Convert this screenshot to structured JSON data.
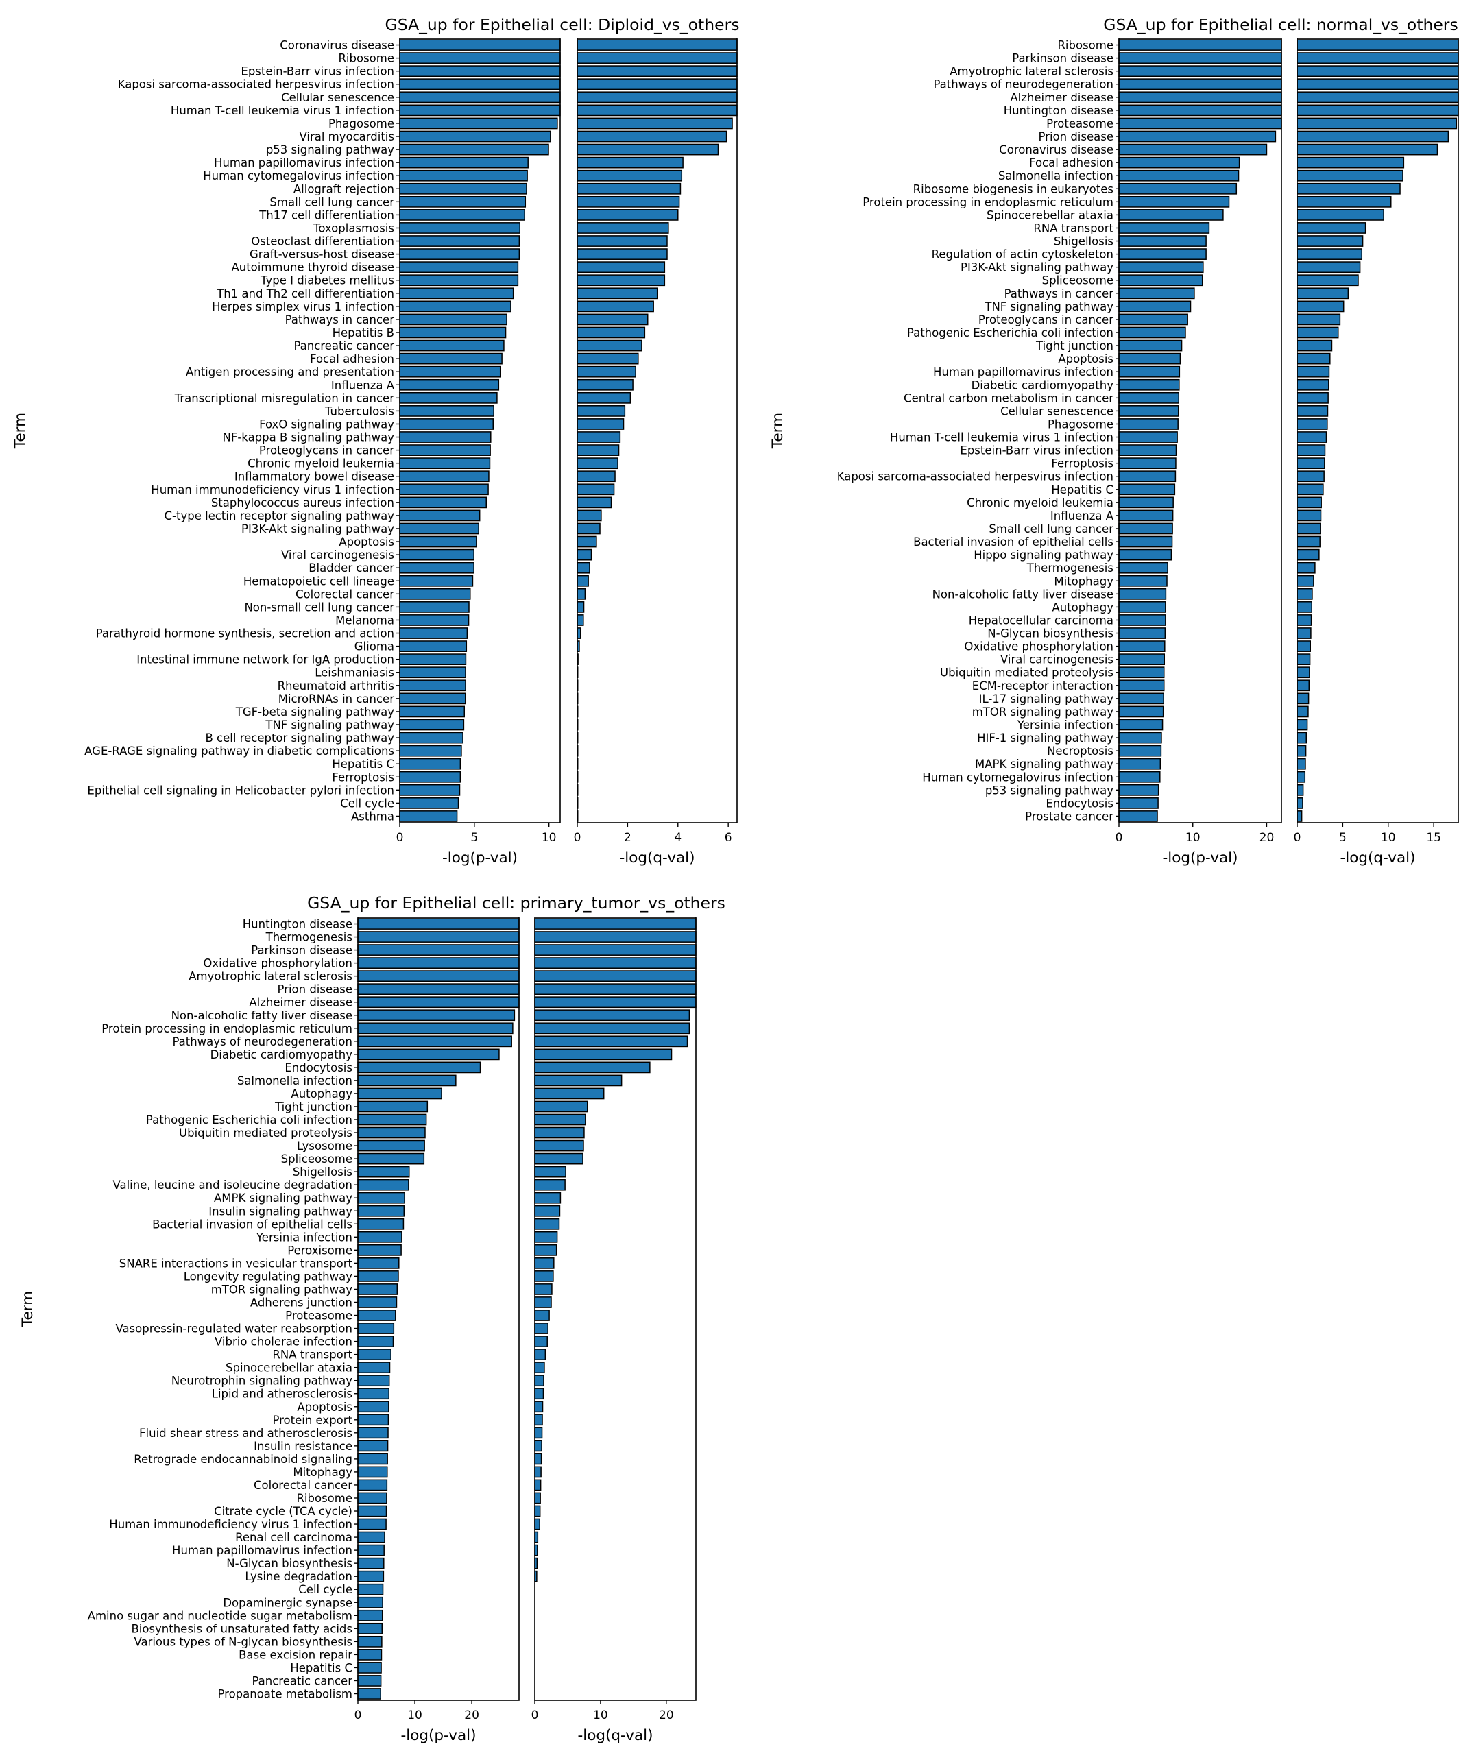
{
  "chart_data": [
    {
      "type": "bar",
      "orientation": "horizontal",
      "title": "GSA_up for Epithelial cell: Diploid_vs_others",
      "ylabel": "Term",
      "terms": [
        "Coronavirus disease",
        "Ribosome",
        "Epstein-Barr virus infection",
        "Kaposi sarcoma-associated herpesvirus infection",
        "Cellular senescence",
        "Human T-cell leukemia virus 1 infection",
        "Phagosome",
        "Viral myocarditis",
        "p53 signaling pathway",
        "Human papillomavirus infection",
        "Human cytomegalovirus infection",
        "Allograft rejection",
        "Small cell lung cancer",
        "Th17 cell differentiation",
        "Toxoplasmosis",
        "Osteoclast differentiation",
        "Graft-versus-host disease",
        "Autoimmune thyroid disease",
        "Type I diabetes mellitus",
        "Th1 and Th2 cell differentiation",
        "Herpes simplex virus 1 infection",
        "Pathways in cancer",
        "Hepatitis B",
        "Pancreatic cancer",
        "Focal adhesion",
        "Antigen processing and presentation",
        "Influenza A",
        "Transcriptional misregulation in cancer",
        "Tuberculosis",
        "FoxO signaling pathway",
        "NF-kappa B signaling pathway",
        "Proteoglycans in cancer",
        "Chronic myeloid leukemia",
        "Inflammatory bowel disease",
        "Human immunodeficiency virus 1 infection",
        "Staphylococcus aureus infection",
        "C-type lectin receptor signaling pathway",
        "PI3K-Akt signaling pathway",
        "Apoptosis",
        "Viral carcinogenesis",
        "Bladder cancer",
        "Hematopoietic cell lineage",
        "Colorectal cancer",
        "Non-small cell lung cancer",
        "Melanoma",
        "Parathyroid hormone synthesis, secretion and action",
        "Glioma",
        "Intestinal immune network for IgA production",
        "Leishmaniasis",
        "Rheumatoid arthritis",
        "MicroRNAs in cancer",
        "TGF-beta signaling pathway",
        "TNF signaling pathway",
        "B cell receptor signaling pathway",
        "AGE-RAGE signaling pathway in diabetic complications",
        "Hepatitis C",
        "Ferroptosis",
        "Epithelial cell signaling in Helicobacter pylori infection",
        "Cell cycle",
        "Asthma"
      ],
      "panels": [
        {
          "xlabel": "-log(p-val)",
          "xlim": [
            0,
            10.75
          ],
          "xticks": [
            0,
            5,
            10
          ],
          "values": [
            10.75,
            10.75,
            10.75,
            10.75,
            10.75,
            10.75,
            10.56,
            10.1,
            9.97,
            8.6,
            8.55,
            8.5,
            8.42,
            8.37,
            8.05,
            8.01,
            8.01,
            7.92,
            7.92,
            7.61,
            7.44,
            7.17,
            7.1,
            6.98,
            6.85,
            6.74,
            6.63,
            6.52,
            6.3,
            6.26,
            6.1,
            6.07,
            6.04,
            5.97,
            5.93,
            5.8,
            5.36,
            5.29,
            5.14,
            4.97,
            4.97,
            4.89,
            4.72,
            4.64,
            4.62,
            4.52,
            4.47,
            4.43,
            4.41,
            4.41,
            4.4,
            4.33,
            4.29,
            4.23,
            4.13,
            4.06,
            4.06,
            4.02,
            3.93,
            3.84
          ]
        },
        {
          "xlabel": "-log(q-val)",
          "xlim": [
            0,
            6.35
          ],
          "xticks": [
            0,
            2,
            4,
            6
          ],
          "values": [
            6.35,
            6.35,
            6.35,
            6.35,
            6.35,
            6.35,
            6.16,
            5.93,
            5.6,
            4.2,
            4.15,
            4.1,
            4.05,
            4.0,
            3.62,
            3.57,
            3.57,
            3.47,
            3.47,
            3.18,
            3.03,
            2.8,
            2.68,
            2.56,
            2.42,
            2.32,
            2.21,
            2.11,
            1.89,
            1.84,
            1.7,
            1.65,
            1.61,
            1.5,
            1.46,
            1.35,
            0.95,
            0.9,
            0.76,
            0.56,
            0.49,
            0.44,
            0.31,
            0.26,
            0.24,
            0.13,
            0.08,
            0.03,
            0.02,
            0.02,
            0.02,
            0.02,
            0.02,
            0.02,
            0.02,
            0.02,
            0.02,
            0.02,
            0.02,
            0.02
          ]
        }
      ]
    },
    {
      "type": "bar",
      "orientation": "horizontal",
      "title": "GSA_up for Epithelial cell: normal_vs_others",
      "ylabel": "Term",
      "terms": [
        "Ribosome",
        "Parkinson disease",
        "Amyotrophic lateral sclerosis",
        "Pathways of neurodegeneration",
        "Alzheimer disease",
        "Huntington disease",
        "Proteasome",
        "Prion disease",
        "Coronavirus disease",
        "Focal adhesion",
        "Salmonella infection",
        "Ribosome biogenesis in eukaryotes",
        "Protein processing in endoplasmic reticulum",
        "Spinocerebellar ataxia",
        "RNA transport",
        "Shigellosis",
        "Regulation of actin cytoskeleton",
        "PI3K-Akt signaling pathway",
        "Spliceosome",
        "Pathways in cancer",
        "TNF signaling pathway",
        "Proteoglycans in cancer",
        "Pathogenic Escherichia coli infection",
        "Tight junction",
        "Apoptosis",
        "Human papillomavirus infection",
        "Diabetic cardiomyopathy",
        "Central carbon metabolism in cancer",
        "Cellular senescence",
        "Phagosome",
        "Human T-cell leukemia virus 1 infection",
        "Epstein-Barr virus infection",
        "Ferroptosis",
        "Kaposi sarcoma-associated herpesvirus infection",
        "Hepatitis C",
        "Chronic myeloid leukemia",
        "Influenza A",
        "Small cell lung cancer",
        "Bacterial invasion of epithelial cells",
        "Hippo signaling pathway",
        "Thermogenesis",
        "Mitophagy",
        "Non-alcoholic fatty liver disease",
        "Autophagy",
        "Hepatocellular carcinoma",
        "N-Glycan biosynthesis",
        "Oxidative phosphorylation",
        "Viral carcinogenesis",
        "Ubiquitin mediated proteolysis",
        "ECM-receptor interaction",
        "IL-17 signaling pathway",
        "mTOR signaling pathway",
        "Yersinia infection",
        "HIF-1 signaling pathway",
        "Necroptosis",
        "MAPK signaling pathway",
        "Human cytomegalovirus infection",
        "p53 signaling pathway",
        "Endocytosis",
        "Prostate cancer"
      ],
      "panels": [
        {
          "xlabel": "-log(p-val)",
          "xlim": [
            0,
            22
          ],
          "xticks": [
            0,
            10,
            20
          ],
          "values": [
            22,
            22,
            22,
            22,
            22,
            22,
            22,
            21.2,
            20.0,
            16.3,
            16.2,
            15.9,
            14.9,
            14.1,
            12.2,
            11.8,
            11.8,
            11.4,
            11.3,
            10.2,
            9.7,
            9.3,
            9.0,
            8.5,
            8.3,
            8.2,
            8.15,
            8.1,
            8.05,
            8.0,
            7.9,
            7.75,
            7.7,
            7.65,
            7.55,
            7.35,
            7.3,
            7.25,
            7.2,
            7.1,
            6.6,
            6.5,
            6.35,
            6.3,
            6.3,
            6.25,
            6.2,
            6.15,
            6.1,
            6.1,
            6.05,
            6.0,
            5.9,
            5.75,
            5.7,
            5.6,
            5.55,
            5.35,
            5.3,
            5.2
          ]
        },
        {
          "xlabel": "-log(q-val)",
          "xlim": [
            0,
            17.7
          ],
          "xticks": [
            0,
            5,
            10,
            15
          ],
          "values": [
            17.7,
            17.7,
            17.7,
            17.7,
            17.7,
            17.7,
            17.5,
            16.6,
            15.4,
            11.7,
            11.6,
            11.3,
            10.3,
            9.5,
            7.5,
            7.2,
            7.1,
            6.9,
            6.7,
            5.6,
            5.1,
            4.7,
            4.5,
            3.8,
            3.6,
            3.5,
            3.45,
            3.4,
            3.35,
            3.3,
            3.2,
            3.05,
            3.0,
            2.95,
            2.85,
            2.65,
            2.6,
            2.55,
            2.5,
            2.4,
            1.95,
            1.8,
            1.65,
            1.6,
            1.55,
            1.5,
            1.45,
            1.4,
            1.35,
            1.3,
            1.25,
            1.2,
            1.1,
            1.0,
            0.95,
            0.9,
            0.85,
            0.65,
            0.6,
            0.5
          ]
        }
      ]
    },
    {
      "type": "bar",
      "orientation": "horizontal",
      "title": "GSA_up for Epithelial cell: primary_tumor_vs_others",
      "ylabel": "Term",
      "terms": [
        "Huntington disease",
        "Thermogenesis",
        "Parkinson disease",
        "Oxidative phosphorylation",
        "Amyotrophic lateral sclerosis",
        "Prion disease",
        "Alzheimer disease",
        "Non-alcoholic fatty liver disease",
        "Protein processing in endoplasmic reticulum",
        "Pathways of neurodegeneration",
        "Diabetic cardiomyopathy",
        "Endocytosis",
        "Salmonella infection",
        "Autophagy",
        "Tight junction",
        "Pathogenic Escherichia coli infection",
        "Ubiquitin mediated proteolysis",
        "Lysosome",
        "Spliceosome",
        "Shigellosis",
        "Valine, leucine and isoleucine degradation",
        "AMPK signaling pathway",
        "Insulin signaling pathway",
        "Bacterial invasion of epithelial cells",
        "Yersinia infection",
        "Peroxisome",
        "SNARE interactions in vesicular transport",
        "Longevity regulating pathway",
        "mTOR signaling pathway",
        "Adherens junction",
        "Proteasome",
        "Vasopressin-regulated water reabsorption",
        "Vibrio cholerae infection",
        "RNA transport",
        "Spinocerebellar ataxia",
        "Neurotrophin signaling pathway",
        "Lipid and atherosclerosis",
        "Apoptosis",
        "Protein export",
        "Fluid shear stress and atherosclerosis",
        "Insulin resistance",
        "Retrograde endocannabinoid signaling",
        "Mitophagy",
        "Colorectal cancer",
        "Ribosome",
        "Citrate cycle (TCA cycle)",
        "Human immunodeficiency virus 1 infection",
        "Renal cell carcinoma",
        "Human papillomavirus infection",
        "N-Glycan biosynthesis",
        "Lysine degradation",
        "Cell cycle",
        "Dopaminergic synapse",
        "Amino sugar and nucleotide sugar metabolism",
        "Biosynthesis of unsaturated fatty acids",
        "Various types of N-glycan biosynthesis",
        "Base excision repair",
        "Hepatitis C",
        "Pancreatic cancer",
        "Propanoate metabolism"
      ],
      "panels": [
        {
          "xlabel": "-log(p-val)",
          "xlim": [
            0,
            28.3
          ],
          "xticks": [
            0,
            10,
            20
          ],
          "values": [
            28.3,
            28.3,
            28.3,
            28.3,
            28.3,
            28.3,
            28.3,
            27.5,
            27.2,
            27.0,
            24.8,
            21.5,
            17.2,
            14.7,
            12.2,
            12.0,
            11.8,
            11.7,
            11.6,
            9.0,
            8.9,
            8.2,
            8.1,
            8.0,
            7.7,
            7.6,
            7.2,
            7.1,
            6.9,
            6.8,
            6.6,
            6.3,
            6.2,
            5.8,
            5.6,
            5.5,
            5.45,
            5.4,
            5.35,
            5.3,
            5.25,
            5.2,
            5.15,
            5.1,
            5.05,
            5.0,
            4.95,
            4.7,
            4.6,
            4.55,
            4.5,
            4.4,
            4.35,
            4.3,
            4.25,
            4.2,
            4.15,
            4.1,
            4.05,
            4.0
          ]
        },
        {
          "xlabel": "-log(q-val)",
          "xlim": [
            0,
            24.5
          ],
          "xticks": [
            0,
            10,
            20
          ],
          "values": [
            24.5,
            24.5,
            24.5,
            24.5,
            24.5,
            24.5,
            24.5,
            23.5,
            23.5,
            23.2,
            20.8,
            17.5,
            13.2,
            10.5,
            8.0,
            7.7,
            7.5,
            7.4,
            7.3,
            4.7,
            4.6,
            3.9,
            3.8,
            3.7,
            3.4,
            3.3,
            2.9,
            2.8,
            2.6,
            2.5,
            2.2,
            2.0,
            1.9,
            1.6,
            1.45,
            1.35,
            1.3,
            1.2,
            1.15,
            1.1,
            1.05,
            1.0,
            0.95,
            0.9,
            0.85,
            0.8,
            0.75,
            0.45,
            0.4,
            0.35,
            0.3,
            0.0,
            0.0,
            0.0,
            0.0,
            0.0,
            0.0,
            0.0,
            0.0,
            0.0
          ]
        }
      ]
    }
  ]
}
